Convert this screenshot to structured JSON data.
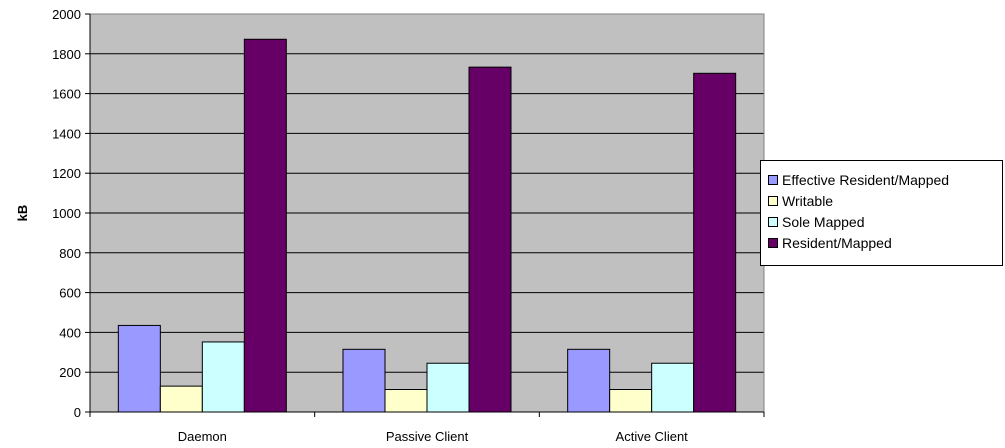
{
  "chart_data": {
    "type": "bar",
    "title": "",
    "xlabel": "",
    "ylabel": "kB",
    "ylim": [
      0,
      2000
    ],
    "yticks": [
      0,
      200,
      400,
      600,
      800,
      1000,
      1200,
      1400,
      1600,
      1800,
      2000
    ],
    "grid": true,
    "legend_position": "right",
    "categories": [
      "Daemon",
      "Passive Client",
      "Active Client"
    ],
    "series": [
      {
        "name": "Effective Resident/Mapped",
        "color": "#9999ff",
        "values": [
          435,
          315,
          315
        ]
      },
      {
        "name": "Writable",
        "color": "#ffffcc",
        "values": [
          130,
          113,
          113
        ]
      },
      {
        "name": "Sole Mapped",
        "color": "#ccffff",
        "values": [
          352,
          245,
          245
        ]
      },
      {
        "name": "Resident/Mapped",
        "color": "#660066",
        "values": [
          1873,
          1733,
          1702
        ]
      }
    ],
    "plot_background": "#c0c0c0"
  }
}
